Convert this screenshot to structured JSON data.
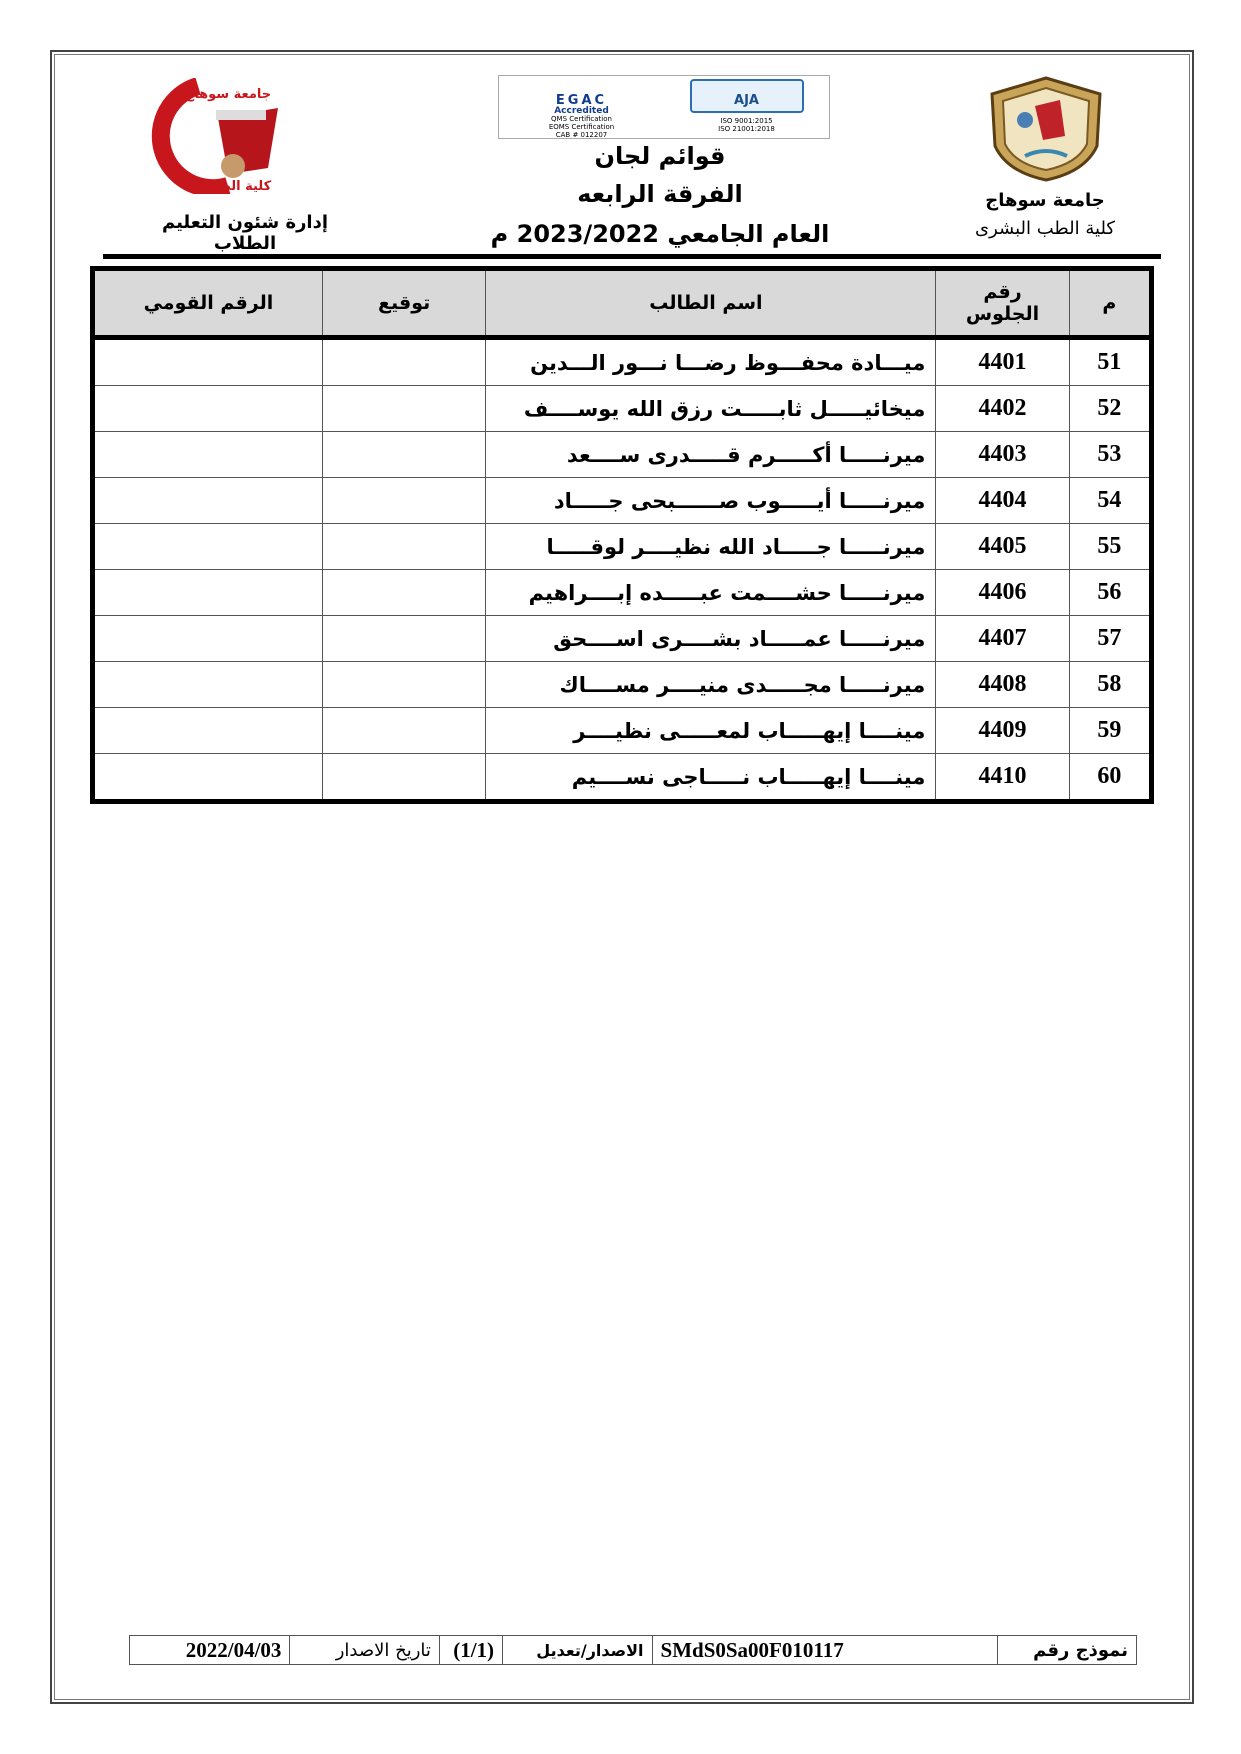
{
  "header": {
    "right_line1": "جامعة سوهاج",
    "right_line2": "كلية الطب البشرى",
    "left_line": "إدارة شئون التعليم الطلاب",
    "title_line1": "قوائم لجان",
    "title_line2": "الفرقة الرابعه",
    "title_line3": "العام الجامعي 2023/2022 م",
    "left_logo_text_top": "جامعة سوهاج",
    "left_logo_text_bottom": "كلية الطب",
    "cert_left": {
      "name": "EGAC",
      "sub": "Accredited",
      "lines": [
        "QMS Certification",
        "EOMS Certification",
        "CAB # 012207"
      ]
    },
    "cert_right": {
      "name": "AJA",
      "lines": [
        "ISO 9001:2015",
        "ISO 21001:2018"
      ]
    }
  },
  "table": {
    "columns": {
      "m": "م",
      "seat": "رقم الجلوس",
      "name": "اسم الطالب",
      "signature": "توقيع",
      "national_id": "الرقم القومي"
    },
    "rows": [
      {
        "m": "51",
        "seat": "4401",
        "name": "ميـــادة محفـــوظ رضـــا نـــور الـــدين"
      },
      {
        "m": "52",
        "seat": "4402",
        "name": "ميخائيـــــل ثابـــــت رزق الله يوســــف"
      },
      {
        "m": "53",
        "seat": "4403",
        "name": "ميرنـــــا أكـــــرم قـــــدرى ســــعد"
      },
      {
        "m": "54",
        "seat": "4404",
        "name": "ميرنـــــا أيـــــوب صــــــبحى جـــــاد"
      },
      {
        "m": "55",
        "seat": "4405",
        "name": "ميرنـــــا جـــــاد الله نظيــــر لوقـــــا"
      },
      {
        "m": "56",
        "seat": "4406",
        "name": "ميرنـــــا حشــــمت عبـــــده إبــــراهيم"
      },
      {
        "m": "57",
        "seat": "4407",
        "name": "ميرنـــــا عمـــــاد بشــــرى اســــحق"
      },
      {
        "m": "58",
        "seat": "4408",
        "name": "ميرنـــــا مجـــــدى منيــــر مســــاك"
      },
      {
        "m": "59",
        "seat": "4409",
        "name": "مينــــا إيهـــــاب لمعـــــى نظيــــر"
      },
      {
        "m": "60",
        "seat": "4410",
        "name": "مينــــا إيهـــــاب نـــــاجى نســــيم"
      }
    ]
  },
  "footer": {
    "form_label": "نموذج رقم",
    "form_code": "SMdS0Sa00F010117",
    "version_label": "الاصدار/تعديل",
    "version_value": "(1/1)",
    "date_label": "تاريخ الاصدار",
    "date_value": "2022/04/03"
  }
}
